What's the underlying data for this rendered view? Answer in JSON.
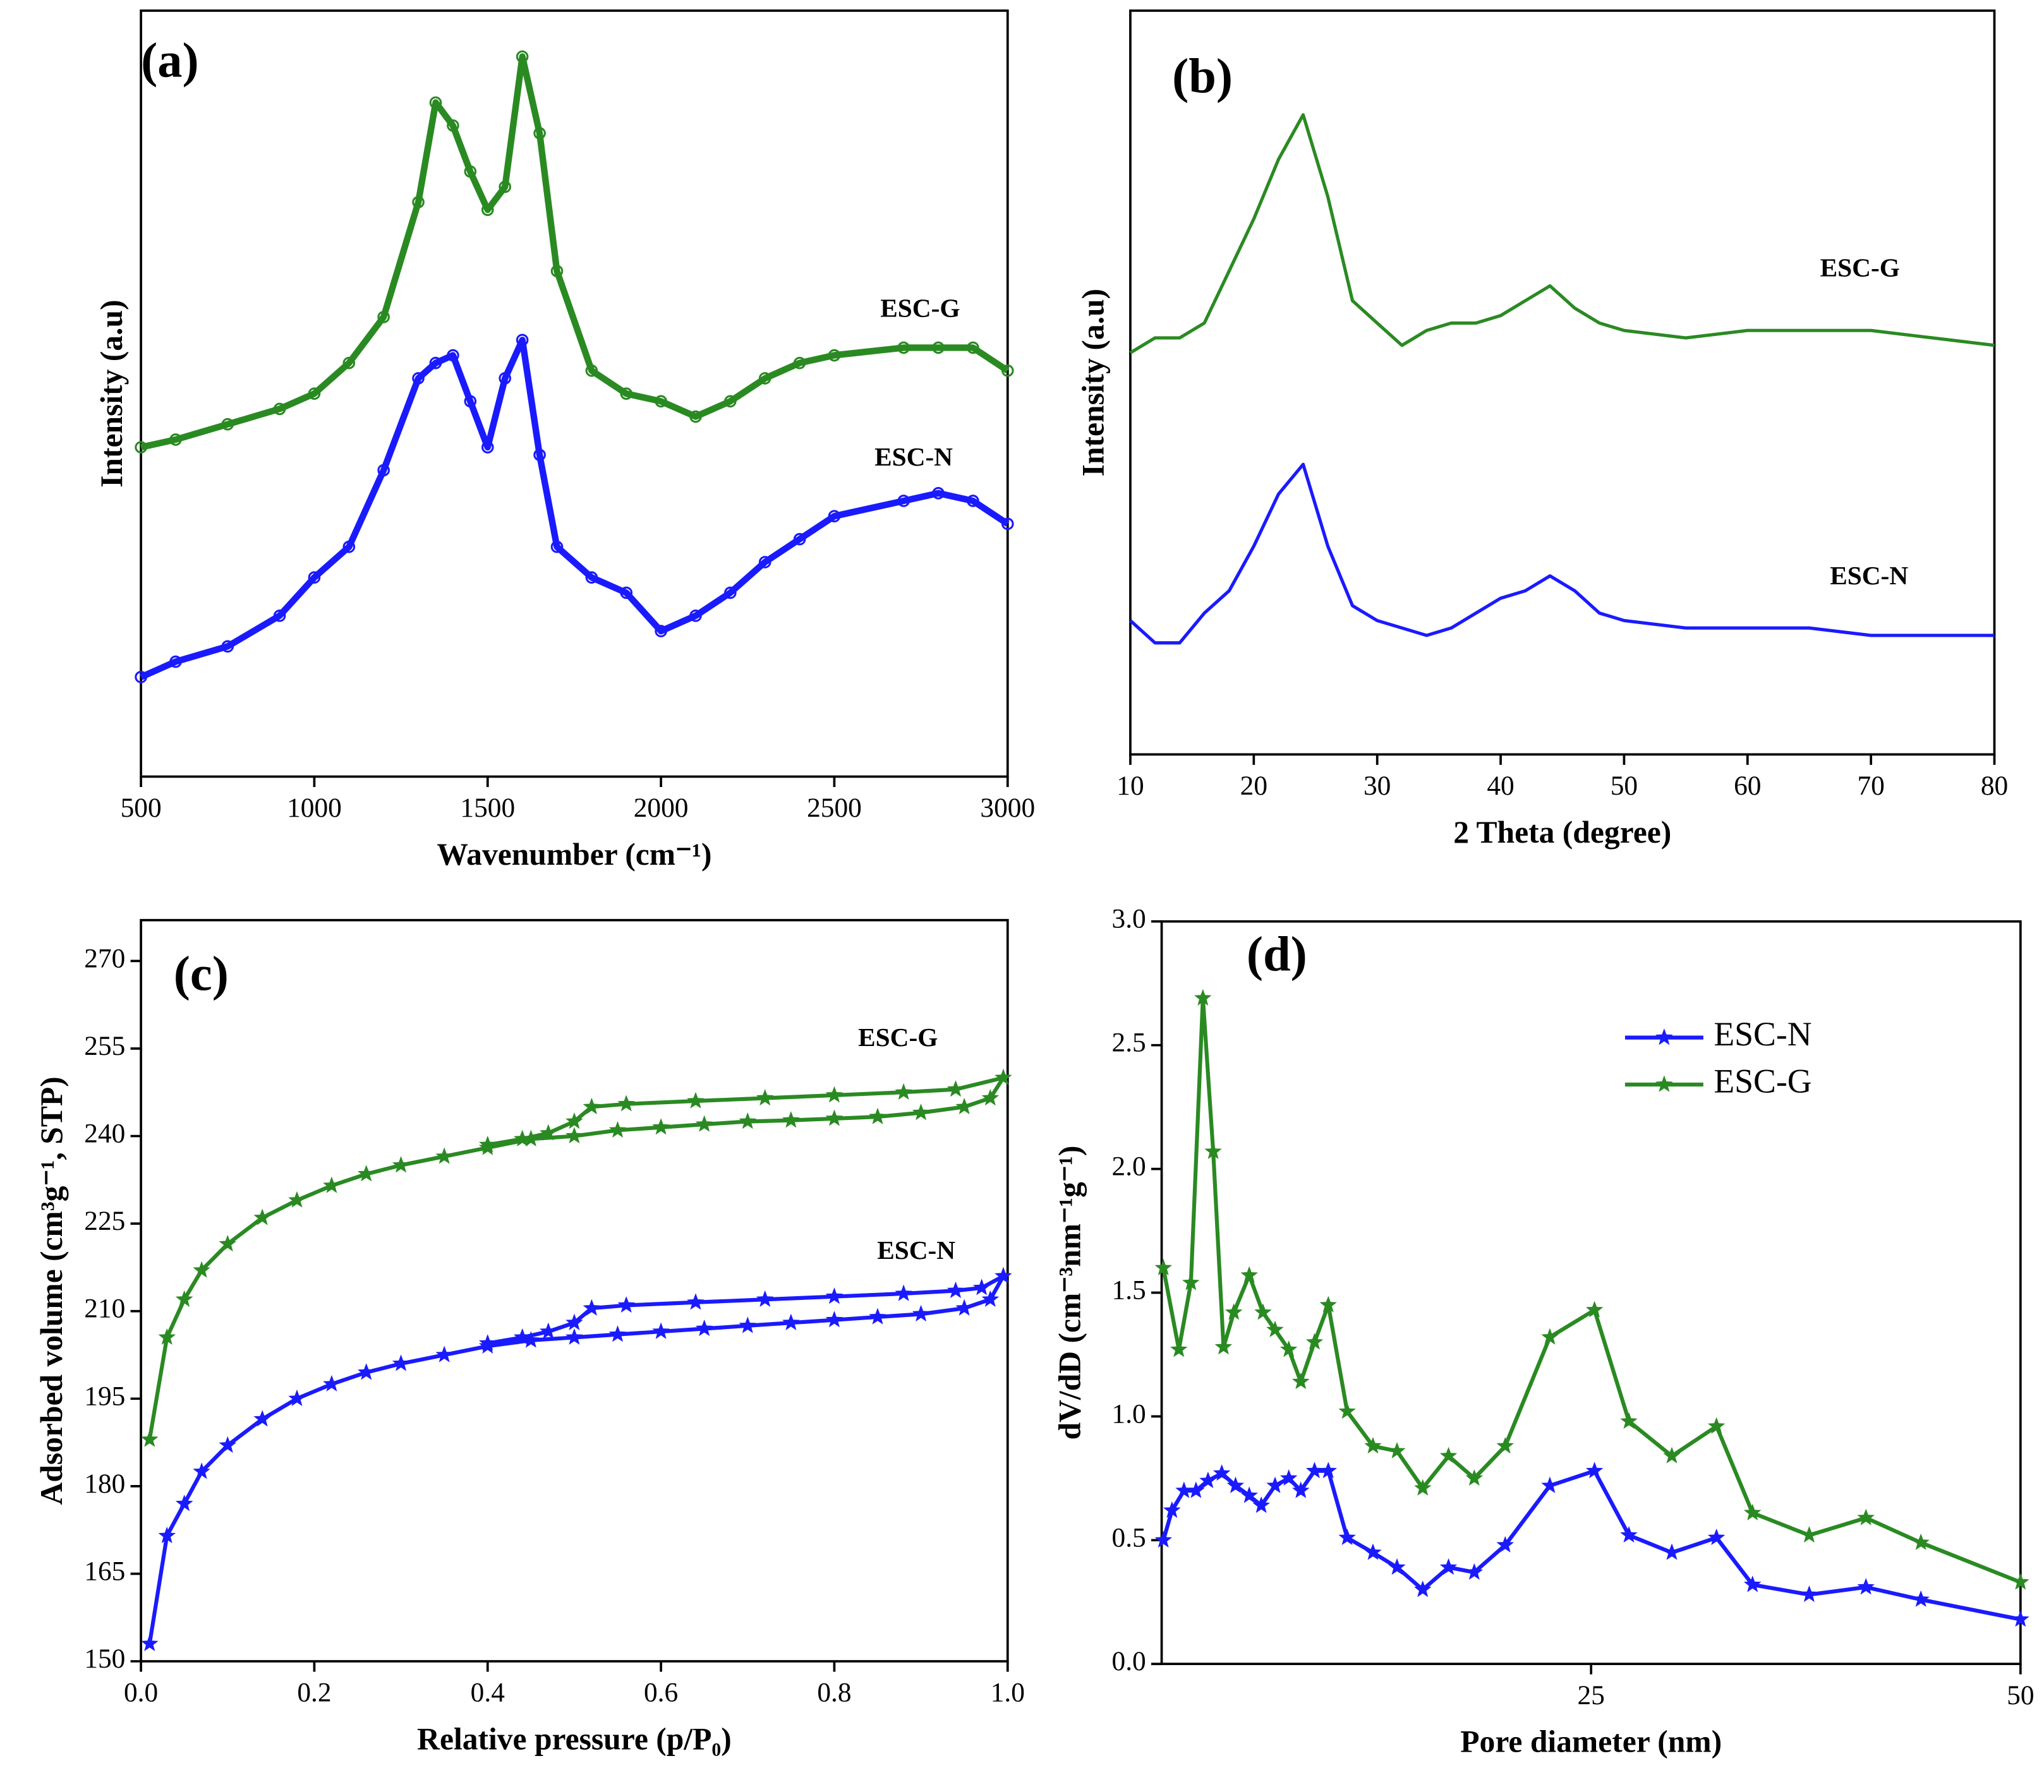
{
  "chart_data": [
    {
      "type": "line",
      "panel_label": "(a)",
      "xlabel": "Wavenumber (cm⁻¹)",
      "ylabel": "Intensity (a.u)",
      "marker": "circle",
      "xlim": [
        500,
        3000
      ],
      "xticks": [
        500,
        1000,
        1500,
        2000,
        2500,
        3000
      ],
      "ylim": [
        0,
        100
      ],
      "x": [
        500,
        600,
        750,
        900,
        1000,
        1100,
        1200,
        1300,
        1350,
        1400,
        1450,
        1500,
        1550,
        1600,
        1650,
        1700,
        1800,
        1900,
        2000,
        2100,
        2200,
        2300,
        2400,
        2500,
        2700,
        2800,
        2900,
        3000
      ],
      "series": [
        {
          "name": "ESC-G",
          "color": "#2a8a22",
          "values": [
            43,
            44,
            46,
            48,
            50,
            54,
            60,
            75,
            88,
            85,
            79,
            74,
            77,
            94,
            84,
            66,
            53,
            50,
            49,
            47,
            49,
            52,
            54,
            55,
            56,
            56,
            56,
            53
          ]
        },
        {
          "name": "ESC-N",
          "color": "#1a1aff",
          "values": [
            13,
            15,
            17,
            21,
            26,
            30,
            40,
            52,
            54,
            55,
            49,
            43,
            52,
            57,
            42,
            30,
            26,
            24,
            19,
            21,
            24,
            28,
            31,
            34,
            36,
            37,
            36,
            33
          ]
        }
      ]
    },
    {
      "type": "line",
      "panel_label": "(b)",
      "xlabel": "2 Theta (degree)",
      "ylabel": "Intensity (a.u)",
      "marker": "none",
      "xlim": [
        10,
        80
      ],
      "xticks": [
        10,
        20,
        30,
        40,
        50,
        60,
        70,
        80
      ],
      "ylim": [
        0,
        100
      ],
      "x": [
        10,
        12,
        14,
        16,
        18,
        20,
        22,
        24,
        26,
        28,
        30,
        32,
        34,
        36,
        38,
        40,
        42,
        44,
        46,
        48,
        50,
        55,
        60,
        65,
        70,
        75,
        80
      ],
      "series": [
        {
          "name": "ESC-G",
          "color": "#2a8a22",
          "values": [
            54,
            56,
            56,
            58,
            65,
            72,
            80,
            86,
            75,
            61,
            58,
            55,
            57,
            58,
            58,
            59,
            61,
            63,
            60,
            58,
            57,
            56,
            57,
            57,
            57,
            56,
            55
          ]
        },
        {
          "name": "ESC-N",
          "color": "#1a1aff",
          "values": [
            18,
            15,
            15,
            19,
            22,
            28,
            35,
            39,
            28,
            20,
            18,
            17,
            16,
            17,
            19,
            21,
            22,
            24,
            22,
            19,
            18,
            17,
            17,
            17,
            16,
            16,
            16
          ]
        }
      ]
    },
    {
      "type": "line",
      "panel_label": "(c)",
      "xlabel": "Relative pressure (p/P₀)",
      "ylabel": "Adsorbed volume (cm³g⁻¹, STP)",
      "marker": "star",
      "xlim": [
        0,
        1
      ],
      "xticks": [
        {
          "value": 0,
          "label": "0.0"
        },
        0.2,
        0.4,
        0.6,
        0.8,
        {
          "value": 1,
          "label": "1.0"
        }
      ],
      "ylim": [
        150,
        277
      ],
      "yticks": [
        150,
        165,
        180,
        195,
        210,
        225,
        240,
        255,
        270
      ],
      "series": [
        {
          "name": "ESC-G",
          "color": "#2a8a22",
          "x": [
            0.01,
            0.03,
            0.05,
            0.07,
            0.1,
            0.14,
            0.18,
            0.22,
            0.26,
            0.3,
            0.35,
            0.4,
            0.45,
            0.5,
            0.55,
            0.6,
            0.65,
            0.7,
            0.75,
            0.8,
            0.85,
            0.9,
            0.95,
            0.98,
            0.995,
            0.94,
            0.88,
            0.8,
            0.72,
            0.64,
            0.56,
            0.52,
            0.5,
            0.47,
            0.44,
            0.4
          ],
          "values": [
            188,
            205.5,
            212,
            217,
            221.5,
            226,
            229,
            231.5,
            233.5,
            235,
            236.5,
            238,
            239.5,
            240,
            241,
            241.5,
            242,
            242.5,
            242.7,
            243,
            243.3,
            244,
            245,
            246.5,
            250,
            248,
            247.5,
            247,
            246.5,
            246,
            245.5,
            245,
            242.5,
            240.5,
            239.5,
            238.5
          ]
        },
        {
          "name": "ESC-N",
          "color": "#1a1aff",
          "x": [
            0.01,
            0.03,
            0.05,
            0.07,
            0.1,
            0.14,
            0.18,
            0.22,
            0.26,
            0.3,
            0.35,
            0.4,
            0.45,
            0.5,
            0.55,
            0.6,
            0.65,
            0.7,
            0.75,
            0.8,
            0.85,
            0.9,
            0.95,
            0.98,
            0.995,
            0.97,
            0.94,
            0.88,
            0.8,
            0.72,
            0.64,
            0.56,
            0.52,
            0.5,
            0.47,
            0.44,
            0.4
          ],
          "values": [
            153,
            171.5,
            177,
            182.5,
            187,
            191.5,
            195,
            197.5,
            199.5,
            201,
            202.5,
            204,
            205,
            205.5,
            206,
            206.5,
            207,
            207.5,
            208,
            208.5,
            209,
            209.5,
            210.5,
            212,
            216,
            214,
            213.5,
            213,
            212.5,
            212,
            211.5,
            211,
            210.5,
            208,
            206.5,
            205.5,
            204.5
          ]
        }
      ]
    },
    {
      "type": "line",
      "panel_label": "(d)",
      "xlabel": "Pore diameter (nm)",
      "ylabel": "dV/dD (cm⁻³nm⁻¹g⁻¹)",
      "marker": "star",
      "legend": "upper right",
      "xlim": [
        0,
        50
      ],
      "xticks": [
        25,
        50
      ],
      "ylim": [
        0,
        3
      ],
      "yticks": [
        {
          "value": 0,
          "label": "0.0"
        },
        0.5,
        {
          "value": 1,
          "label": "1.0"
        },
        1.5,
        {
          "value": 2,
          "label": "2.0"
        },
        2.5,
        {
          "value": 3,
          "label": "3.0"
        }
      ],
      "series": [
        {
          "name": "ESC-N",
          "color": "#1a1aff",
          "x": [
            0.1,
            0.6,
            1.3,
            2.0,
            2.7,
            3.5,
            4.3,
            5.1,
            5.8,
            6.6,
            7.4,
            8.1,
            8.9,
            9.7,
            10.8,
            12.3,
            13.7,
            15.2,
            16.7,
            18.2,
            20.0,
            22.6,
            25.2,
            27.2,
            29.7,
            32.3,
            34.4,
            37.7,
            41.0,
            44.2,
            50.0
          ],
          "values": [
            0.5,
            0.62,
            0.7,
            0.7,
            0.74,
            0.77,
            0.72,
            0.68,
            0.64,
            0.72,
            0.75,
            0.7,
            0.78,
            0.78,
            0.51,
            0.45,
            0.39,
            0.3,
            0.39,
            0.37,
            0.48,
            0.72,
            0.78,
            0.52,
            0.45,
            0.51,
            0.32,
            0.28,
            0.31,
            0.26,
            0.18
          ]
        },
        {
          "name": "ESC-G",
          "color": "#2a8a22",
          "x": [
            0.1,
            1.0,
            1.7,
            2.4,
            3.0,
            3.6,
            4.2,
            5.1,
            5.9,
            6.6,
            7.4,
            8.1,
            8.9,
            9.7,
            10.8,
            12.3,
            13.7,
            15.2,
            16.7,
            18.2,
            20.0,
            22.6,
            25.2,
            27.2,
            29.7,
            32.3,
            34.4,
            37.7,
            41.0,
            44.2,
            50.0
          ],
          "values": [
            1.6,
            1.27,
            1.54,
            2.69,
            2.07,
            1.28,
            1.42,
            1.57,
            1.42,
            1.35,
            1.27,
            1.14,
            1.3,
            1.45,
            1.02,
            0.88,
            0.86,
            0.71,
            0.84,
            0.75,
            0.88,
            1.32,
            1.43,
            0.98,
            0.84,
            0.96,
            0.61,
            0.52,
            0.59,
            0.49,
            0.33
          ]
        }
      ]
    }
  ]
}
